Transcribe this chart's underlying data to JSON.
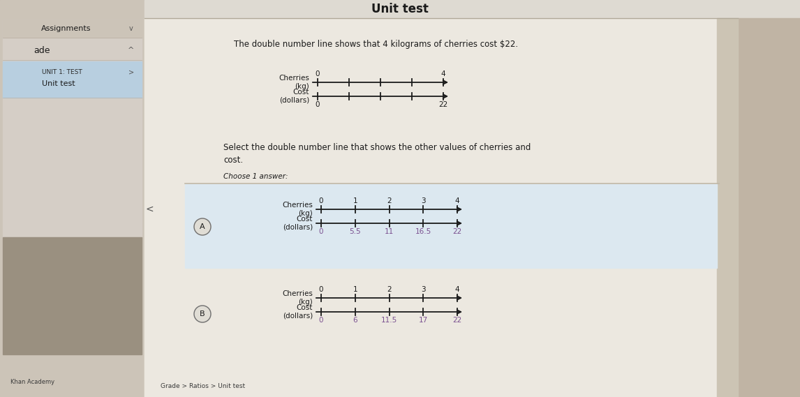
{
  "title": "Unit test",
  "header_text": "Unit test",
  "intro_text": "The double number line shows that 4 kilograms of cherries cost $22.",
  "question_text": "Select the double number line that shows the other values of cherries and\ncost.",
  "choose_text": "Choose 1 answer:",
  "intro_line": {
    "cherries_tick_labels": [
      "0",
      "",
      "",
      "",
      "4"
    ],
    "cost_tick_labels": [
      "0",
      "",
      "",
      "",
      "22"
    ]
  },
  "option_a": {
    "cherries_tick_labels": [
      "0",
      "1",
      "2",
      "3",
      "4"
    ],
    "cost_tick_labels": [
      "0",
      "5.5",
      "11",
      "16.5",
      "22"
    ]
  },
  "option_b": {
    "cherries_tick_labels": [
      "0",
      "1",
      "2",
      "3",
      "4"
    ],
    "cost_tick_labels": [
      "0",
      "6",
      "11.5",
      "17",
      "22"
    ]
  },
  "breadcrumb": "Grade > Ratios > Unit test",
  "col_left_bg": "#b5a898",
  "col_sidebar_panel": "#ccc4b8",
  "col_sidebar_inner": "#d5cec6",
  "col_blue_highlight": "#b8cfe0",
  "col_header_bg": "#dedad2",
  "col_content_bg": "#e5e1d8",
  "col_content_inner": "#ece8e0",
  "col_option_a_bg": "#dce8f0",
  "col_right_bg": "#c0b4a4",
  "col_separator": "#c0b8a8",
  "col_text_dark": "#1a1a1a",
  "col_text_purple": "#7a5090",
  "col_circle_outline": "#707070",
  "col_line": "#2a2a2a"
}
